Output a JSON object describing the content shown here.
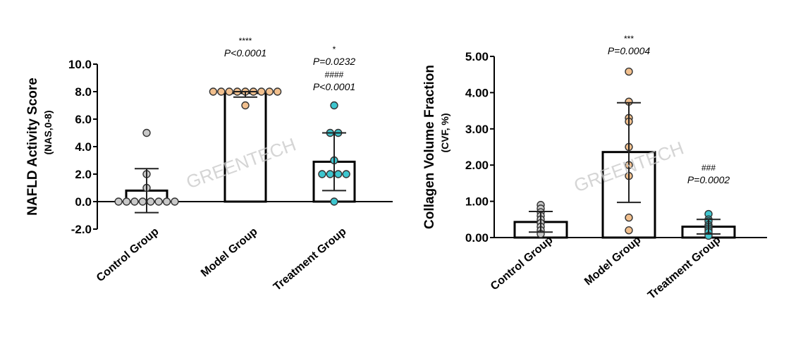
{
  "watermark": "GREENTECH",
  "chart_data": [
    {
      "type": "bar",
      "ylabel": "NAFLD Activity Score",
      "ylabel_sub": "(NAS,0-8)",
      "ylim": [
        -2.0,
        10.0
      ],
      "yticks": [
        "-2.0",
        "0.0",
        "2.0",
        "4.0",
        "6.0",
        "8.0",
        "10.0"
      ],
      "yticks_values": [
        -2,
        0,
        2,
        4,
        6,
        8,
        10
      ],
      "categories": [
        "Control Group",
        "Model Group",
        "Treatment Group"
      ],
      "values": [
        0.8,
        7.9,
        2.9
      ],
      "error": [
        {
          "low": -0.8,
          "high": 2.4
        },
        {
          "low": 7.6,
          "high": 8.0
        },
        {
          "low": 0.8,
          "high": 5.0
        }
      ],
      "points": [
        [
          0,
          0,
          0,
          0,
          0,
          0,
          0,
          0,
          2,
          1,
          5
        ],
        [
          8,
          8,
          8,
          8,
          8,
          8,
          8,
          8,
          8,
          7
        ],
        [
          7,
          5,
          5,
          3,
          2,
          2,
          2,
          2,
          0
        ]
      ],
      "colors": {
        "control": "#c9c9c9",
        "model": "#f2c08e",
        "treatment": "#3ec6cf"
      },
      "annotations": [
        {
          "category": "Model Group",
          "lines": [
            "****",
            "P<0.0001"
          ]
        },
        {
          "category": "Treatment Group",
          "lines": [
            "*",
            "P=0.0232",
            "####",
            "P<0.0001"
          ]
        }
      ]
    },
    {
      "type": "bar",
      "ylabel": "Collagen Volume Fraction",
      "ylabel_sub": "(CVF, %)",
      "ylim": [
        0.0,
        5.0
      ],
      "yticks": [
        "0.00",
        "1.00",
        "2.00",
        "3.00",
        "4.00",
        "5.00"
      ],
      "yticks_values": [
        0,
        1,
        2,
        3,
        4,
        5
      ],
      "categories": [
        "Control Group",
        "Model Group",
        "Treatment Group"
      ],
      "values": [
        0.43,
        2.36,
        0.3
      ],
      "error": [
        {
          "low": 0.15,
          "high": 0.72
        },
        {
          "low": 0.97,
          "high": 3.72
        },
        {
          "low": 0.1,
          "high": 0.5
        }
      ],
      "points": [
        [
          0.9,
          0.8,
          0.7,
          0.6,
          0.5,
          0.4,
          0.3,
          0.2,
          0.1
        ],
        [
          4.58,
          3.75,
          3.3,
          3.2,
          2.5,
          2.0,
          1.7,
          0.55,
          0.2
        ],
        [
          0.65,
          0.5,
          0.45,
          0.35,
          0.3,
          0.25,
          0.2,
          0.15,
          0.05
        ]
      ],
      "colors": {
        "control": "#c9c9c9",
        "model": "#f2c08e",
        "treatment": "#3ec6cf"
      },
      "annotations": [
        {
          "category": "Model Group",
          "lines": [
            "***",
            "P=0.0004"
          ]
        },
        {
          "category": "Treatment Group",
          "lines": [
            "###",
            "P=0.0002"
          ]
        }
      ]
    }
  ]
}
